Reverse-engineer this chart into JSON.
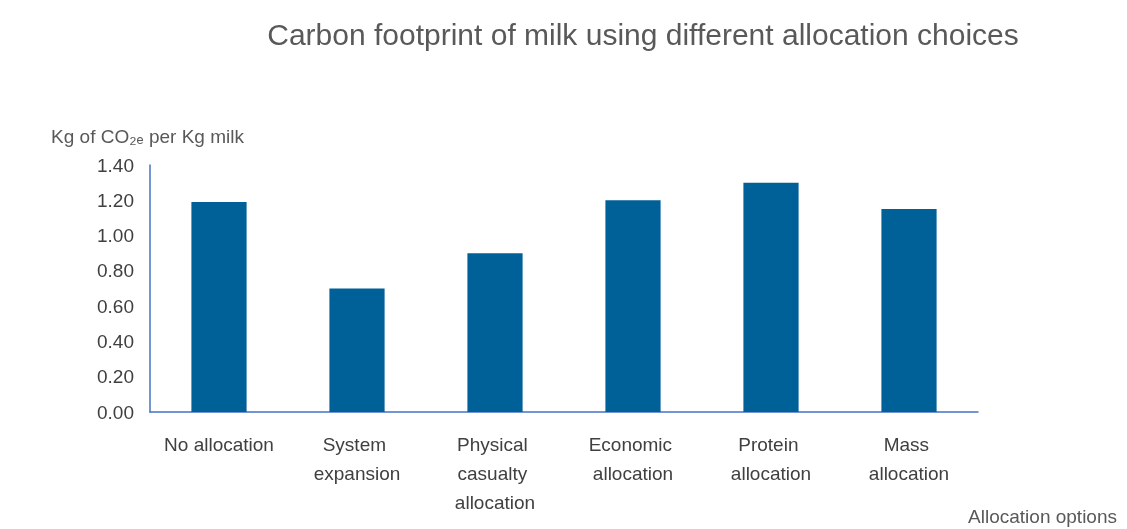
{
  "chart_data": {
    "type": "bar",
    "title": "Carbon footprint of milk using different allocation choices",
    "xlabel": "Allocation options",
    "ylabel": "Kg of CO₂ₑ per Kg milk",
    "categories": [
      "No allocation",
      "System expansion",
      "Physical casualty allocation",
      "Economic allocation",
      "Protein allocation",
      "Mass allocation"
    ],
    "values": [
      1.19,
      0.7,
      0.9,
      1.2,
      1.3,
      1.15
    ],
    "color": "#006199",
    "ylim": [
      0,
      1.4
    ],
    "yticks": [
      {
        "value": 0,
        "label": "0.00"
      },
      {
        "value": 0.2,
        "label": "0.20"
      },
      {
        "value": 0.4,
        "label": "0.40"
      },
      {
        "value": 0.6,
        "label": "0.60"
      },
      {
        "value": 0.8,
        "label": "0.80"
      },
      {
        "value": 1.0,
        "label": "1.00"
      },
      {
        "value": 1.2,
        "label": "1.20"
      },
      {
        "value": 1.4,
        "label": "1.40"
      }
    ],
    "grid": false
  }
}
